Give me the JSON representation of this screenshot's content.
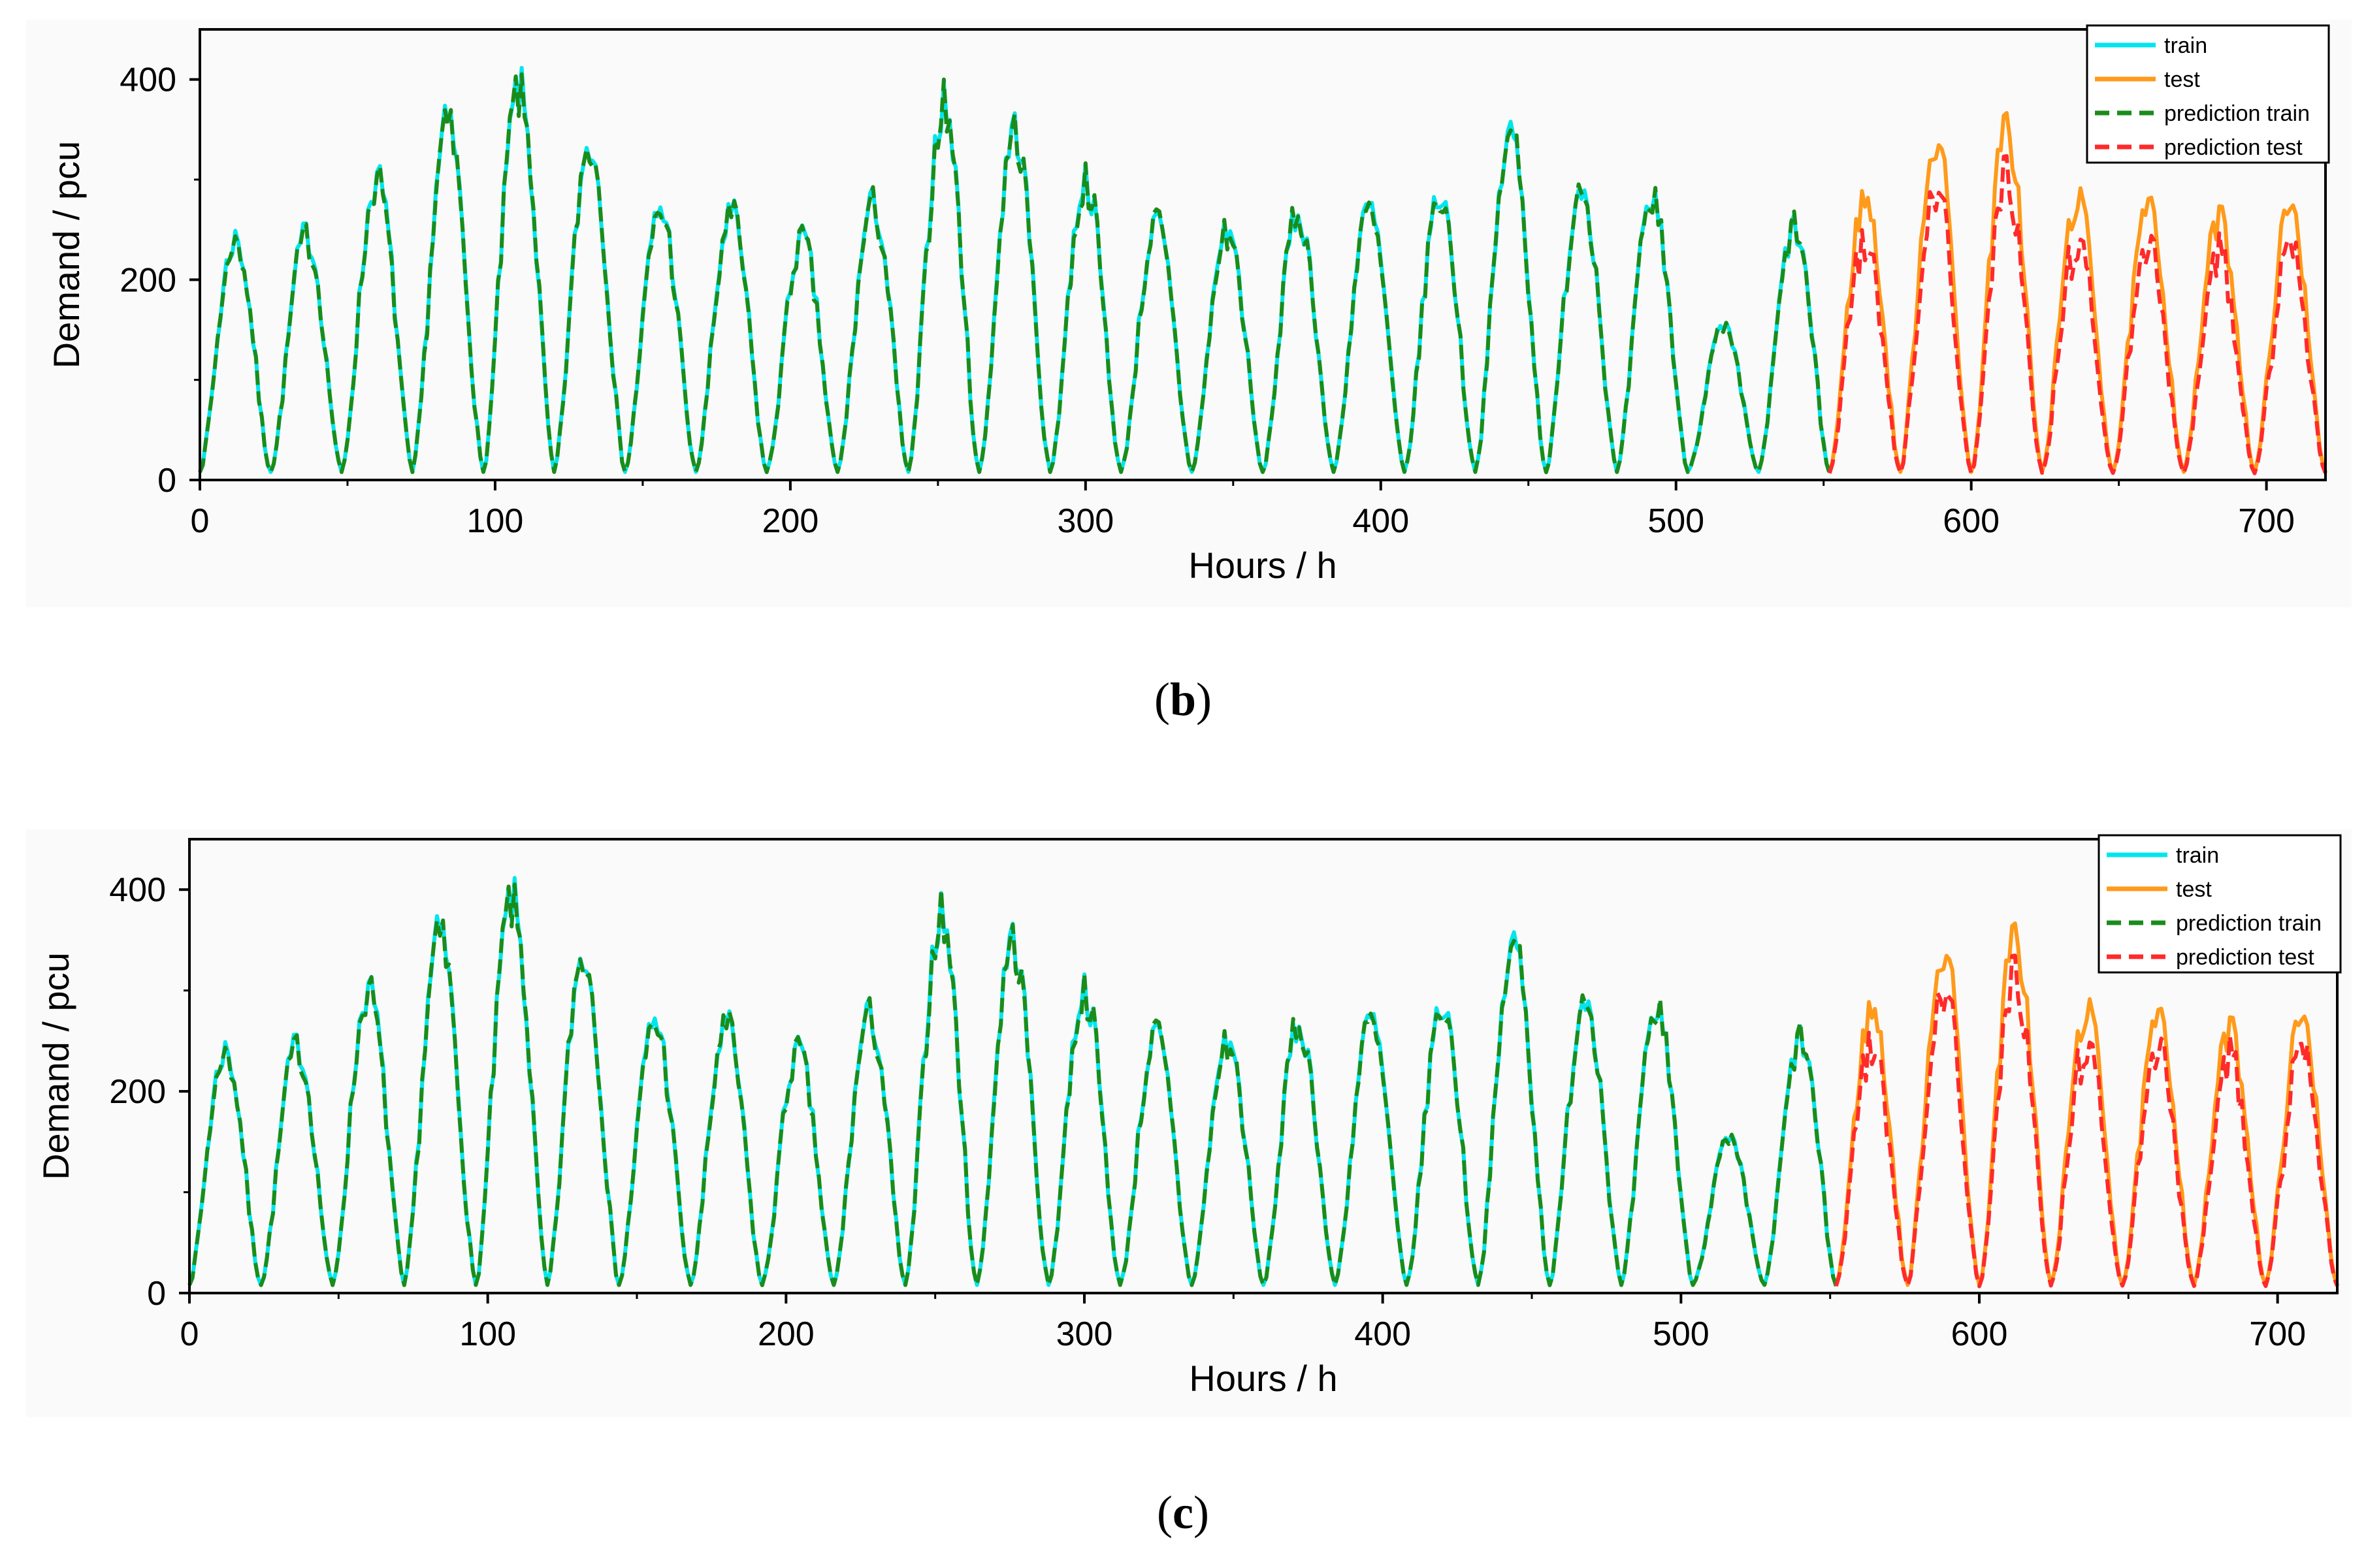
{
  "chart_data": [
    {
      "id": "b",
      "type": "line",
      "caption": "b",
      "xlabel": "Hours / h",
      "ylabel": "Demand / pcu",
      "xlim": [
        0,
        720
      ],
      "ylim": [
        0,
        450
      ],
      "xticks": [
        0,
        100,
        200,
        300,
        400,
        500,
        600,
        700
      ],
      "yticks": [
        0,
        200,
        400
      ],
      "legend_position": "top-right",
      "split_hour": 552,
      "daily_peaks": [
        240,
        245,
        300,
        355,
        390,
        335,
        270,
        265,
        240,
        275,
        375,
        350,
        300,
        255,
        250,
        265,
        270,
        285,
        345,
        295,
        280,
        150,
        250,
        280,
        340,
        350,
        280,
        270,
        260,
        270
      ],
      "test_prediction_scale": 0.87,
      "series": [
        {
          "name": "train",
          "color": "#00e5ee",
          "dash": "",
          "range": [
            0,
            552
          ]
        },
        {
          "name": "test",
          "color": "#ff9a1a",
          "dash": "",
          "range": [
            552,
            720
          ]
        },
        {
          "name": "prediction train",
          "color": "#1a8c1a",
          "dash": "22 10",
          "range": [
            0,
            552
          ]
        },
        {
          "name": "prediction test",
          "color": "#ff2a2a",
          "dash": "22 10",
          "range": [
            552,
            720
          ]
        }
      ]
    },
    {
      "id": "c",
      "type": "line",
      "caption": "c",
      "xlabel": "Hours / h",
      "ylabel": "Demand / pcu",
      "xlim": [
        0,
        720
      ],
      "ylim": [
        0,
        450
      ],
      "xticks": [
        0,
        100,
        200,
        300,
        400,
        500,
        600,
        700
      ],
      "yticks": [
        0,
        200,
        400
      ],
      "legend_position": "top-right",
      "split_hour": 552,
      "daily_peaks": [
        240,
        245,
        300,
        355,
        390,
        335,
        270,
        265,
        240,
        275,
        375,
        350,
        300,
        255,
        250,
        265,
        270,
        285,
        345,
        295,
        280,
        150,
        250,
        280,
        340,
        350,
        280,
        270,
        260,
        270
      ],
      "test_prediction_scale": 0.9,
      "series": [
        {
          "name": "train",
          "color": "#00e5ee",
          "dash": "",
          "range": [
            0,
            552
          ]
        },
        {
          "name": "test",
          "color": "#ff9a1a",
          "dash": "",
          "range": [
            552,
            720
          ]
        },
        {
          "name": "prediction train",
          "color": "#1a8c1a",
          "dash": "22 10",
          "range": [
            0,
            552
          ]
        },
        {
          "name": "prediction test",
          "color": "#ff2a2a",
          "dash": "22 10",
          "range": [
            552,
            720
          ]
        }
      ]
    }
  ]
}
